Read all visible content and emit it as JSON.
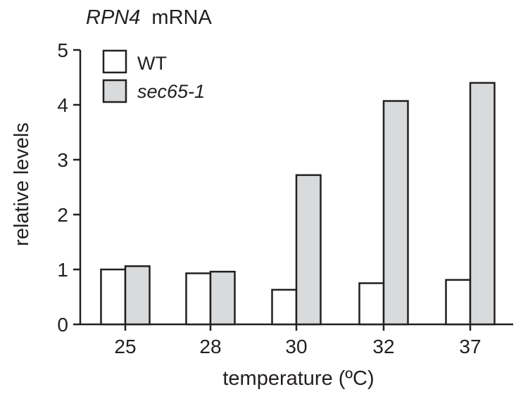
{
  "chart_data": {
    "type": "bar",
    "title_gene": "RPN4",
    "title_rest": "mRNA",
    "xlabel": "temperature (ºC)",
    "ylabel": "relative levels",
    "categories": [
      "25",
      "28",
      "30",
      "32",
      "37"
    ],
    "yticks": [
      "0",
      "1",
      "2",
      "3",
      "4",
      "5"
    ],
    "ylim": [
      0,
      5
    ],
    "grid": false,
    "legend_position": "top-left",
    "series": [
      {
        "name": "WT",
        "values": [
          1.0,
          0.93,
          0.63,
          0.75,
          0.81
        ],
        "color": "#ffffff"
      },
      {
        "name": "sec65-1",
        "values": [
          1.06,
          0.96,
          2.72,
          4.07,
          4.4
        ],
        "color": "#d9dadb"
      }
    ]
  }
}
